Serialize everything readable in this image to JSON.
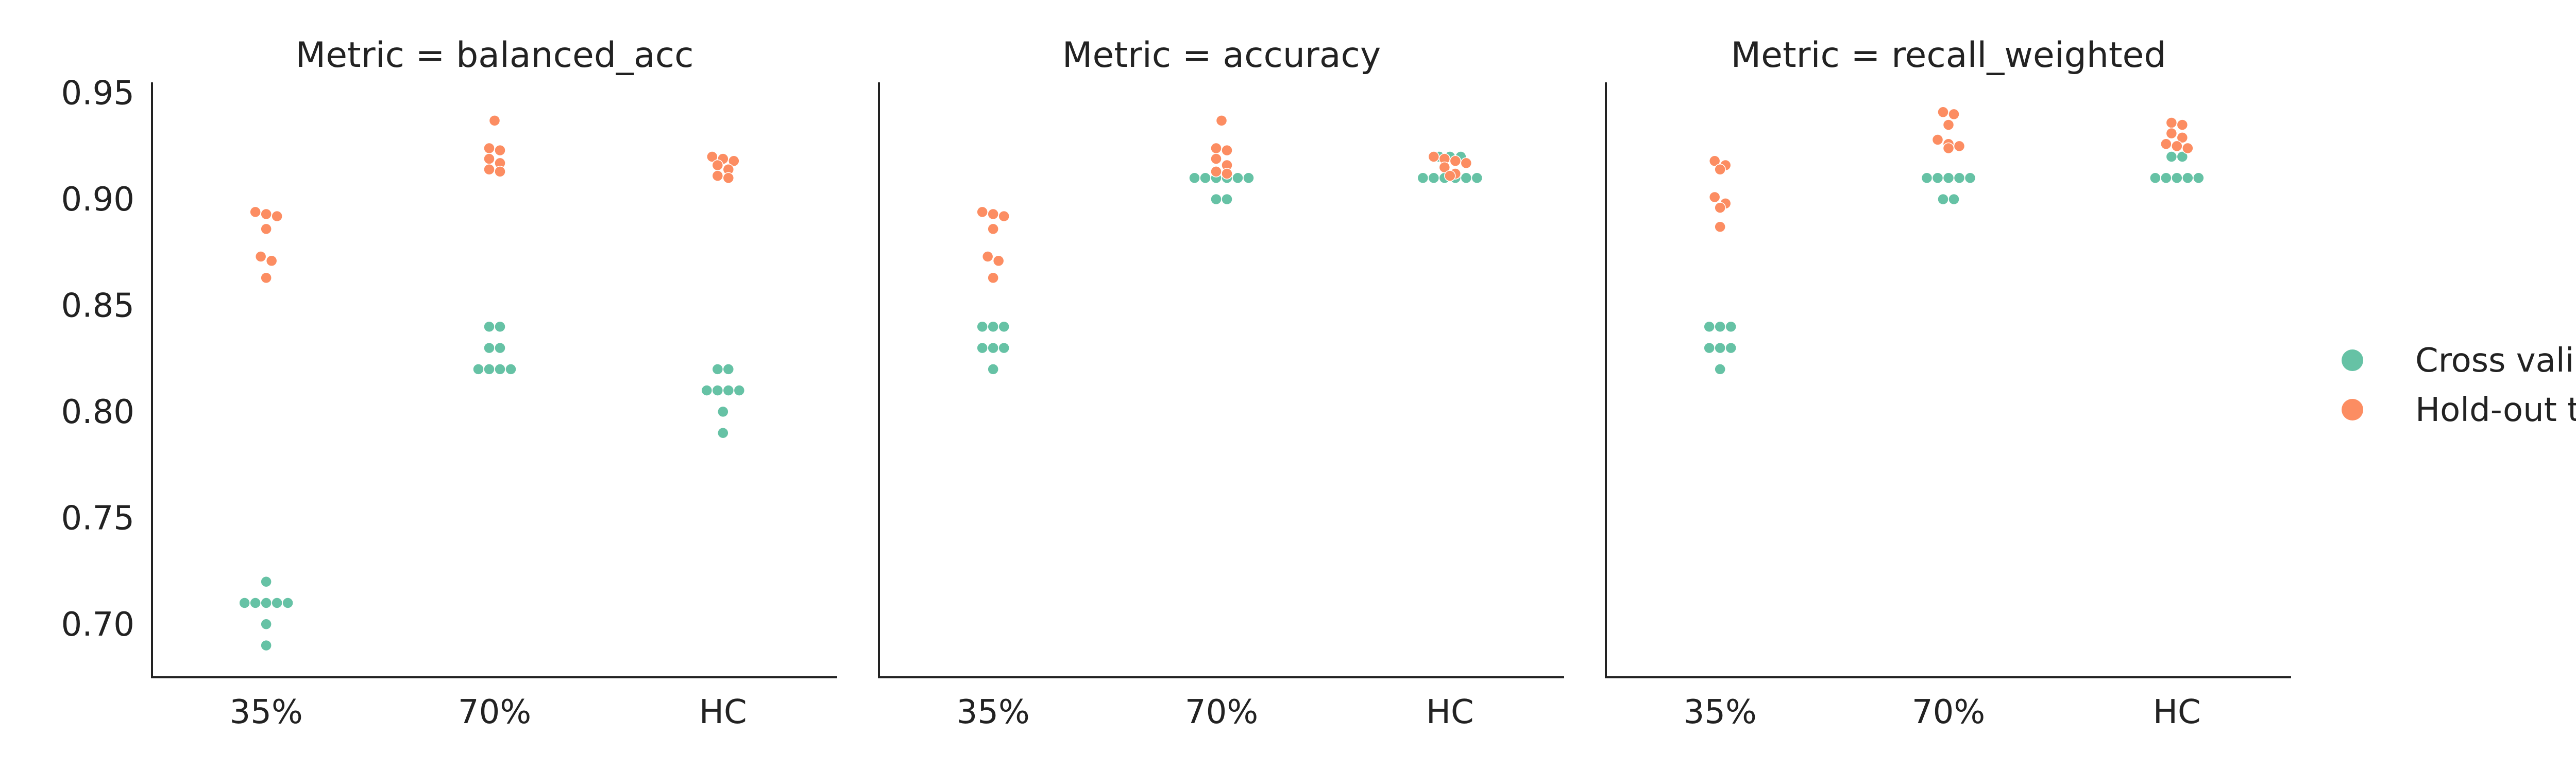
{
  "chart_data": {
    "type": "scatter",
    "subtype": "swarm",
    "grid": false,
    "legend_position": "right",
    "colors": {
      "Cross validation": "#66c2a5",
      "Hold-out test": "#fc8d62"
    },
    "legend": {
      "items": [
        "Cross validation",
        "Hold-out test"
      ]
    },
    "categories": [
      "35%",
      "70%",
      "HC"
    ],
    "ylim": [
      0.675,
      0.955
    ],
    "yticks": [
      0.7,
      0.75,
      0.8,
      0.85,
      0.9,
      0.95
    ],
    "ytick_labels": [
      "0.70",
      "0.75",
      "0.80",
      "0.85",
      "0.90",
      "0.95"
    ],
    "panels": [
      {
        "title": "Metric = balanced_acc",
        "series": [
          {
            "name": "Cross validation",
            "values": {
              "35%": [
                0.72,
                0.71,
                0.71,
                0.71,
                0.71,
                0.71,
                0.7,
                0.69
              ],
              "70%": [
                0.84,
                0.84,
                0.83,
                0.83,
                0.82,
                0.82,
                0.82,
                0.82
              ],
              "HC": [
                0.82,
                0.82,
                0.81,
                0.81,
                0.81,
                0.81,
                0.8,
                0.79
              ]
            }
          },
          {
            "name": "Hold-out test",
            "values": {
              "35%": [
                0.894,
                0.893,
                0.892,
                0.886,
                0.873,
                0.871,
                0.863
              ],
              "70%": [
                0.937,
                0.924,
                0.923,
                0.919,
                0.917,
                0.914,
                0.913
              ],
              "HC": [
                0.92,
                0.919,
                0.918,
                0.916,
                0.914,
                0.911,
                0.91
              ]
            }
          }
        ]
      },
      {
        "title": "Metric = accuracy",
        "series": [
          {
            "name": "Cross validation",
            "values": {
              "35%": [
                0.84,
                0.84,
                0.84,
                0.83,
                0.83,
                0.83,
                0.82
              ],
              "70%": [
                0.91,
                0.91,
                0.91,
                0.91,
                0.91,
                0.91,
                0.9,
                0.9
              ],
              "HC": [
                0.92,
                0.92,
                0.92,
                0.91,
                0.91,
                0.91,
                0.91,
                0.91,
                0.91
              ]
            }
          },
          {
            "name": "Hold-out test",
            "values": {
              "35%": [
                0.894,
                0.893,
                0.892,
                0.886,
                0.873,
                0.871,
                0.863
              ],
              "70%": [
                0.937,
                0.924,
                0.923,
                0.919,
                0.916,
                0.913,
                0.912
              ],
              "HC": [
                0.92,
                0.919,
                0.918,
                0.917,
                0.915,
                0.912,
                0.911
              ]
            }
          }
        ]
      },
      {
        "title": "Metric = recall_weighted",
        "series": [
          {
            "name": "Cross validation",
            "values": {
              "35%": [
                0.84,
                0.84,
                0.84,
                0.83,
                0.83,
                0.83,
                0.82
              ],
              "70%": [
                0.91,
                0.91,
                0.91,
                0.91,
                0.91,
                0.9,
                0.9
              ],
              "HC": [
                0.92,
                0.92,
                0.91,
                0.91,
                0.91,
                0.91,
                0.91
              ]
            }
          },
          {
            "name": "Hold-out test",
            "values": {
              "35%": [
                0.918,
                0.916,
                0.914,
                0.901,
                0.898,
                0.896,
                0.887
              ],
              "70%": [
                0.941,
                0.94,
                0.935,
                0.928,
                0.926,
                0.925,
                0.924
              ],
              "HC": [
                0.936,
                0.935,
                0.931,
                0.929,
                0.926,
                0.925,
                0.924
              ]
            }
          }
        ]
      }
    ]
  }
}
